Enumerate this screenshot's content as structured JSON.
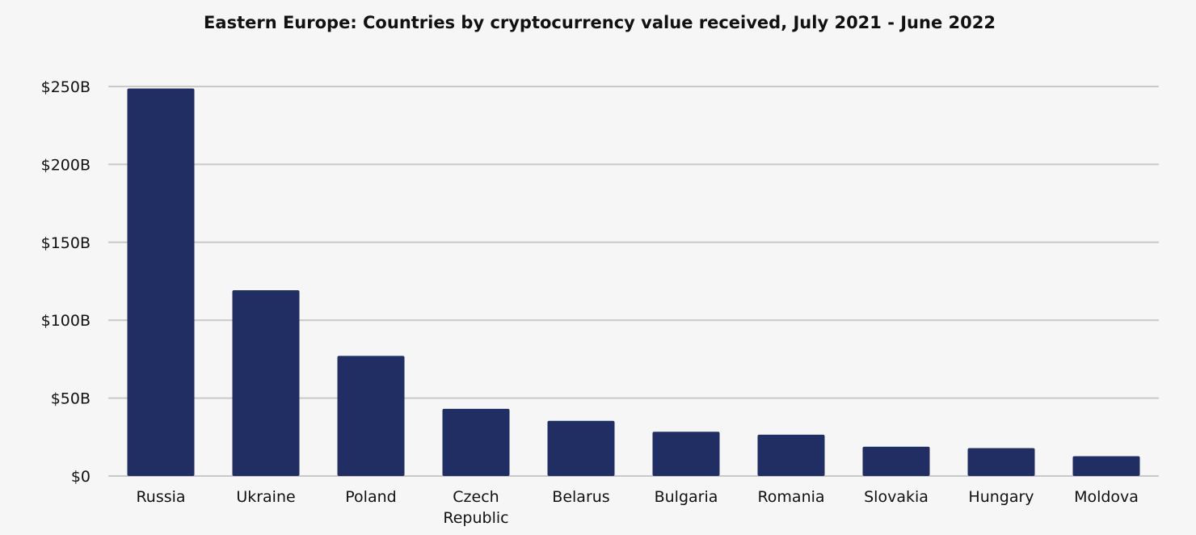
{
  "chart_data": {
    "type": "bar",
    "title": "Eastern Europe: Countries by cryptocurrency value received, July 2021 - June 2022",
    "xlabel": "",
    "ylabel": "",
    "categories": [
      "Russia",
      "Ukraine",
      "Poland",
      "Czech Republic",
      "Belarus",
      "Bulgaria",
      "Romania",
      "Slovakia",
      "Hungary",
      "Moldova"
    ],
    "category_lines": [
      [
        "Russia"
      ],
      [
        "Ukraine"
      ],
      [
        "Poland"
      ],
      [
        "Czech",
        "Republic"
      ],
      [
        "Belarus"
      ],
      [
        "Bulgaria"
      ],
      [
        "Romania"
      ],
      [
        "Slovakia"
      ],
      [
        "Hungary"
      ],
      [
        "Moldova"
      ]
    ],
    "values": [
      248.7,
      119.2,
      77.1,
      43.1,
      35.4,
      28.4,
      26.5,
      18.8,
      17.9,
      12.7
    ],
    "unit": "billion USD",
    "ylim": [
      0,
      250
    ],
    "yticks": [
      0,
      50,
      100,
      150,
      200,
      250
    ],
    "ytick_labels": [
      "$0",
      "$50B",
      "$100B",
      "$150B",
      "$200B",
      "$250B"
    ],
    "grid": true,
    "legend": "none",
    "bar_color": "#212e63",
    "grid_color": "#c9c9c9",
    "background": "#f6f6f6"
  }
}
